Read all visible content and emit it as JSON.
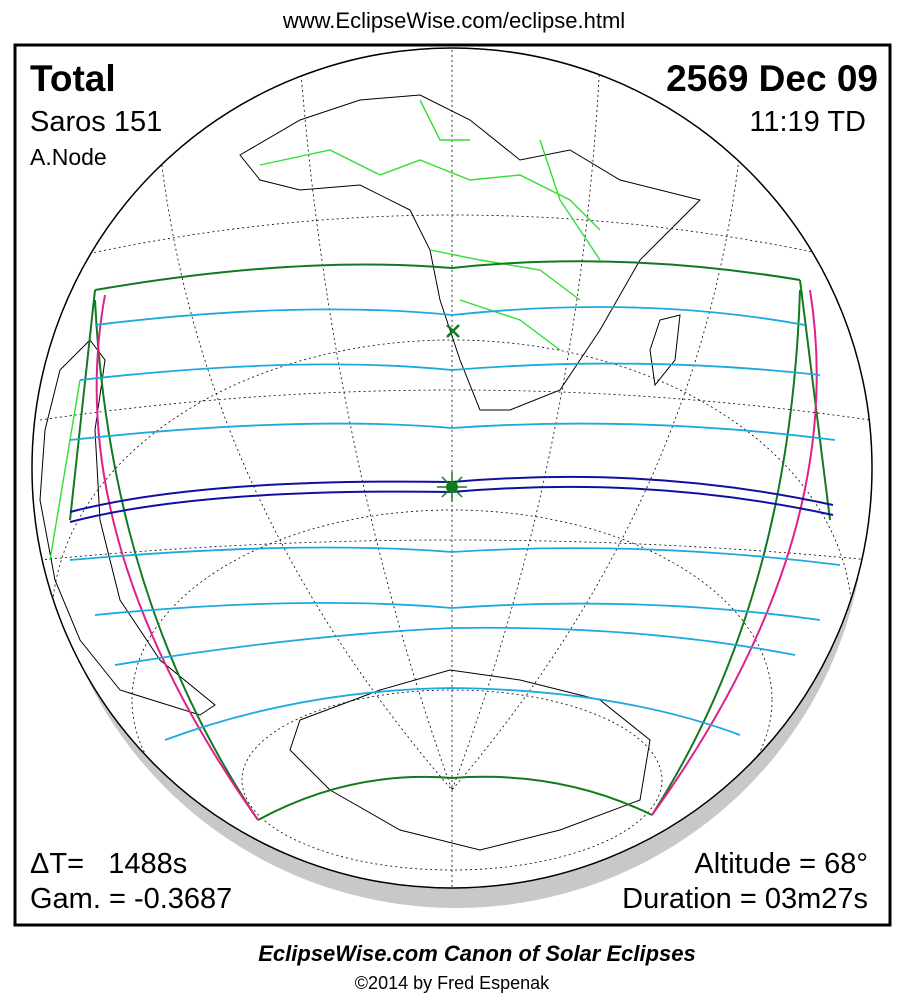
{
  "header": {
    "url": "www.EclipseWise.com/eclipse.html"
  },
  "eclipse": {
    "type": "Total",
    "date": "2569 Dec 09",
    "saros": "Saros 151",
    "time": "11:19 TD",
    "node": "A.Node",
    "delta_t": "ΔT=   1488s",
    "gamma": "Gam. = -0.3687",
    "altitude": "Altitude = 68°",
    "duration": "Duration = 03m27s"
  },
  "footer": {
    "title": "EclipseWise.com Canon of Solar Eclipses",
    "copyright": "©2014 by Fred Espenak"
  }
}
